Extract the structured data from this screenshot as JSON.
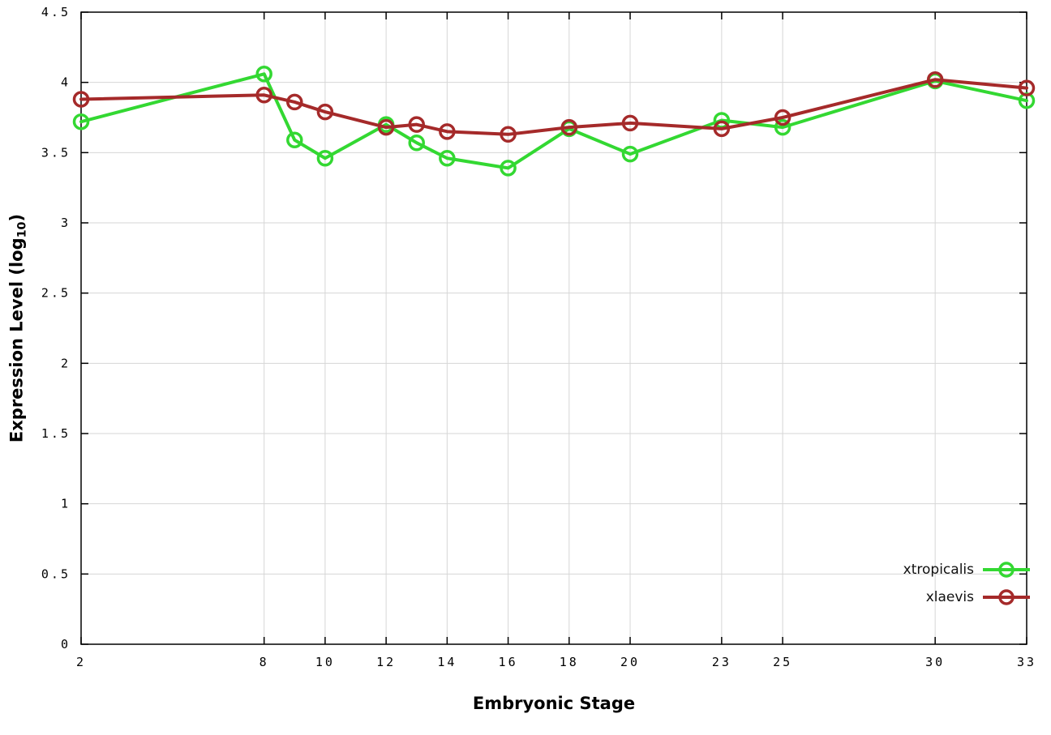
{
  "chart_data": {
    "type": "line",
    "title": "",
    "xlabel": "Embryonic Stage",
    "ylabel": "Expression Level (log10)",
    "ylabel_parts": {
      "main": "Expression Level (log",
      "sub": "10",
      "end": ")"
    },
    "x": [
      2,
      8,
      9,
      10,
      12,
      13,
      14,
      16,
      18,
      20,
      23,
      25,
      30,
      33
    ],
    "x_ticks": [
      2,
      8,
      10,
      12,
      14,
      16,
      18,
      20,
      23,
      25,
      30,
      33
    ],
    "y_ticks": [
      0,
      0.5,
      1,
      1.5,
      2,
      2.5,
      3,
      3.5,
      4,
      4.5
    ],
    "xlim": [
      2,
      33
    ],
    "ylim": [
      0,
      4.5
    ],
    "grid": true,
    "legend_position": "bottom-right",
    "series": [
      {
        "name": "xtropicalis",
        "color": "#33d832",
        "values": [
          3.72,
          4.06,
          3.59,
          3.46,
          3.7,
          3.57,
          3.46,
          3.39,
          3.67,
          3.49,
          3.73,
          3.68,
          4.01,
          3.87
        ]
      },
      {
        "name": "xlaevis",
        "color": "#a52a2a",
        "values": [
          3.88,
          3.91,
          3.86,
          3.79,
          3.68,
          3.7,
          3.65,
          3.63,
          3.68,
          3.71,
          3.67,
          3.75,
          4.02,
          3.96
        ]
      }
    ]
  },
  "colors": {
    "grid": "#d6d6d6",
    "axis": "#000000",
    "background": "#ffffff",
    "marker_fill": "none"
  }
}
